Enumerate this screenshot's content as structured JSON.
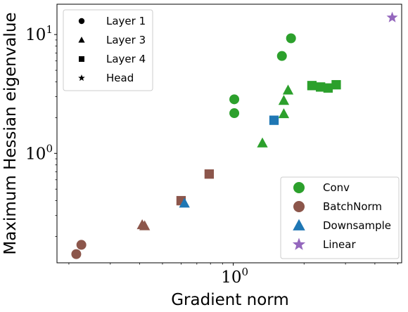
{
  "chart_data": {
    "type": "scatter",
    "xlabel": "Gradient norm",
    "ylabel": "Maximum Hessian eigenvalue",
    "xscale": "log",
    "yscale": "log",
    "xlim": [
      0.178,
      5.2
    ],
    "ylim": [
      0.12,
      18.0
    ],
    "xticks": [
      {
        "value": 1,
        "base": "10",
        "exp": "0"
      }
    ],
    "yticks": [
      {
        "value": 1,
        "base": "10",
        "exp": "0"
      },
      {
        "value": 10,
        "base": "10",
        "exp": "1"
      }
    ],
    "marker_legend": {
      "placement": "top-left",
      "items": [
        {
          "label": "Layer 1",
          "marker": "circle"
        },
        {
          "label": "Layer 3",
          "marker": "triangle"
        },
        {
          "label": "Layer 4",
          "marker": "square"
        },
        {
          "label": "Head",
          "marker": "star"
        }
      ]
    },
    "color_legend": {
      "placement": "lower-right",
      "items": [
        {
          "label": "Conv",
          "color": "#2ca02c"
        },
        {
          "label": "BatchNorm",
          "color": "#8c564b"
        },
        {
          "label": "Downsample",
          "color": "#1f77b4"
        },
        {
          "label": "Linear",
          "color": "#9467bd"
        }
      ]
    },
    "points": [
      {
        "x": 0.215,
        "y": 0.142,
        "marker": "circle",
        "color": "#8c564b"
      },
      {
        "x": 0.226,
        "y": 0.17,
        "marker": "circle",
        "color": "#8c564b"
      },
      {
        "x": 0.41,
        "y": 0.25,
        "marker": "triangle",
        "color": "#8c564b"
      },
      {
        "x": 0.42,
        "y": 0.245,
        "marker": "triangle",
        "color": "#8c564b"
      },
      {
        "x": 0.6,
        "y": 0.4,
        "marker": "square",
        "color": "#8c564b"
      },
      {
        "x": 0.79,
        "y": 0.67,
        "marker": "square",
        "color": "#8c564b"
      },
      {
        "x": 0.62,
        "y": 0.38,
        "marker": "triangle",
        "color": "#1f77b4"
      },
      {
        "x": 1.49,
        "y": 1.9,
        "marker": "square",
        "color": "#1f77b4"
      },
      {
        "x": 1.01,
        "y": 2.85,
        "marker": "circle",
        "color": "#2ca02c"
      },
      {
        "x": 1.01,
        "y": 2.18,
        "marker": "circle",
        "color": "#2ca02c"
      },
      {
        "x": 1.61,
        "y": 6.6,
        "marker": "circle",
        "color": "#2ca02c"
      },
      {
        "x": 1.76,
        "y": 9.3,
        "marker": "circle",
        "color": "#2ca02c"
      },
      {
        "x": 1.33,
        "y": 1.22,
        "marker": "triangle",
        "color": "#2ca02c"
      },
      {
        "x": 1.64,
        "y": 2.15,
        "marker": "triangle",
        "color": "#2ca02c"
      },
      {
        "x": 1.64,
        "y": 2.78,
        "marker": "triangle",
        "color": "#2ca02c"
      },
      {
        "x": 1.71,
        "y": 3.4,
        "marker": "triangle",
        "color": "#2ca02c"
      },
      {
        "x": 2.16,
        "y": 3.72,
        "marker": "square",
        "color": "#2ca02c"
      },
      {
        "x": 2.35,
        "y": 3.62,
        "marker": "square",
        "color": "#2ca02c"
      },
      {
        "x": 2.53,
        "y": 3.55,
        "marker": "square",
        "color": "#2ca02c"
      },
      {
        "x": 2.74,
        "y": 3.78,
        "marker": "square",
        "color": "#2ca02c"
      },
      {
        "x": 4.74,
        "y": 13.9,
        "marker": "star",
        "color": "#9467bd"
      }
    ]
  }
}
